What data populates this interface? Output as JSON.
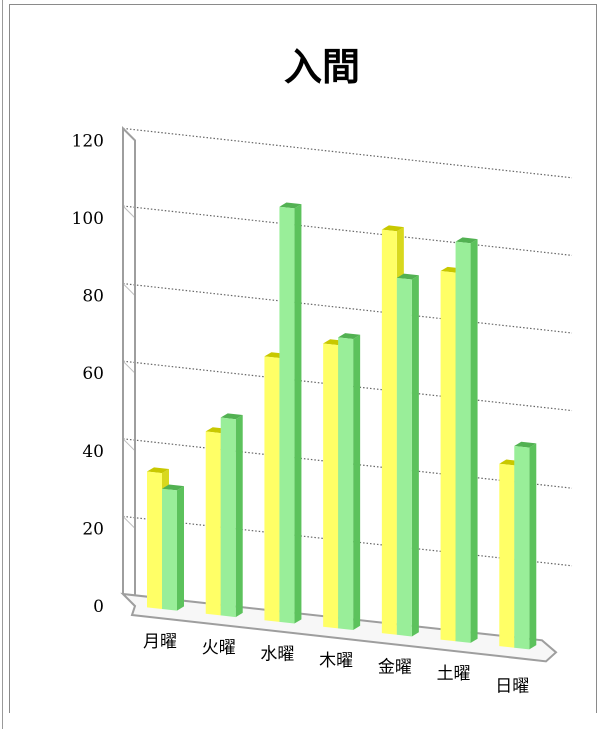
{
  "chart_data": {
    "type": "bar",
    "title": "入間",
    "categories": [
      "月曜",
      "火曜",
      "水曜",
      "木曜",
      "金曜",
      "土曜",
      "日曜"
    ],
    "series": [
      {
        "color": "#FFFF66",
        "values": [
          35,
          47,
          68,
          73,
          104,
          95,
          47
        ]
      },
      {
        "color": "#99EE99",
        "values": [
          31,
          51,
          107,
          75,
          92,
          103,
          52
        ]
      }
    ],
    "ylim": [
      0,
      120
    ],
    "yticks": [
      0,
      20,
      40,
      60,
      80,
      100,
      120
    ],
    "xlabel": "",
    "ylabel": "",
    "grid": true,
    "legend": "none"
  }
}
